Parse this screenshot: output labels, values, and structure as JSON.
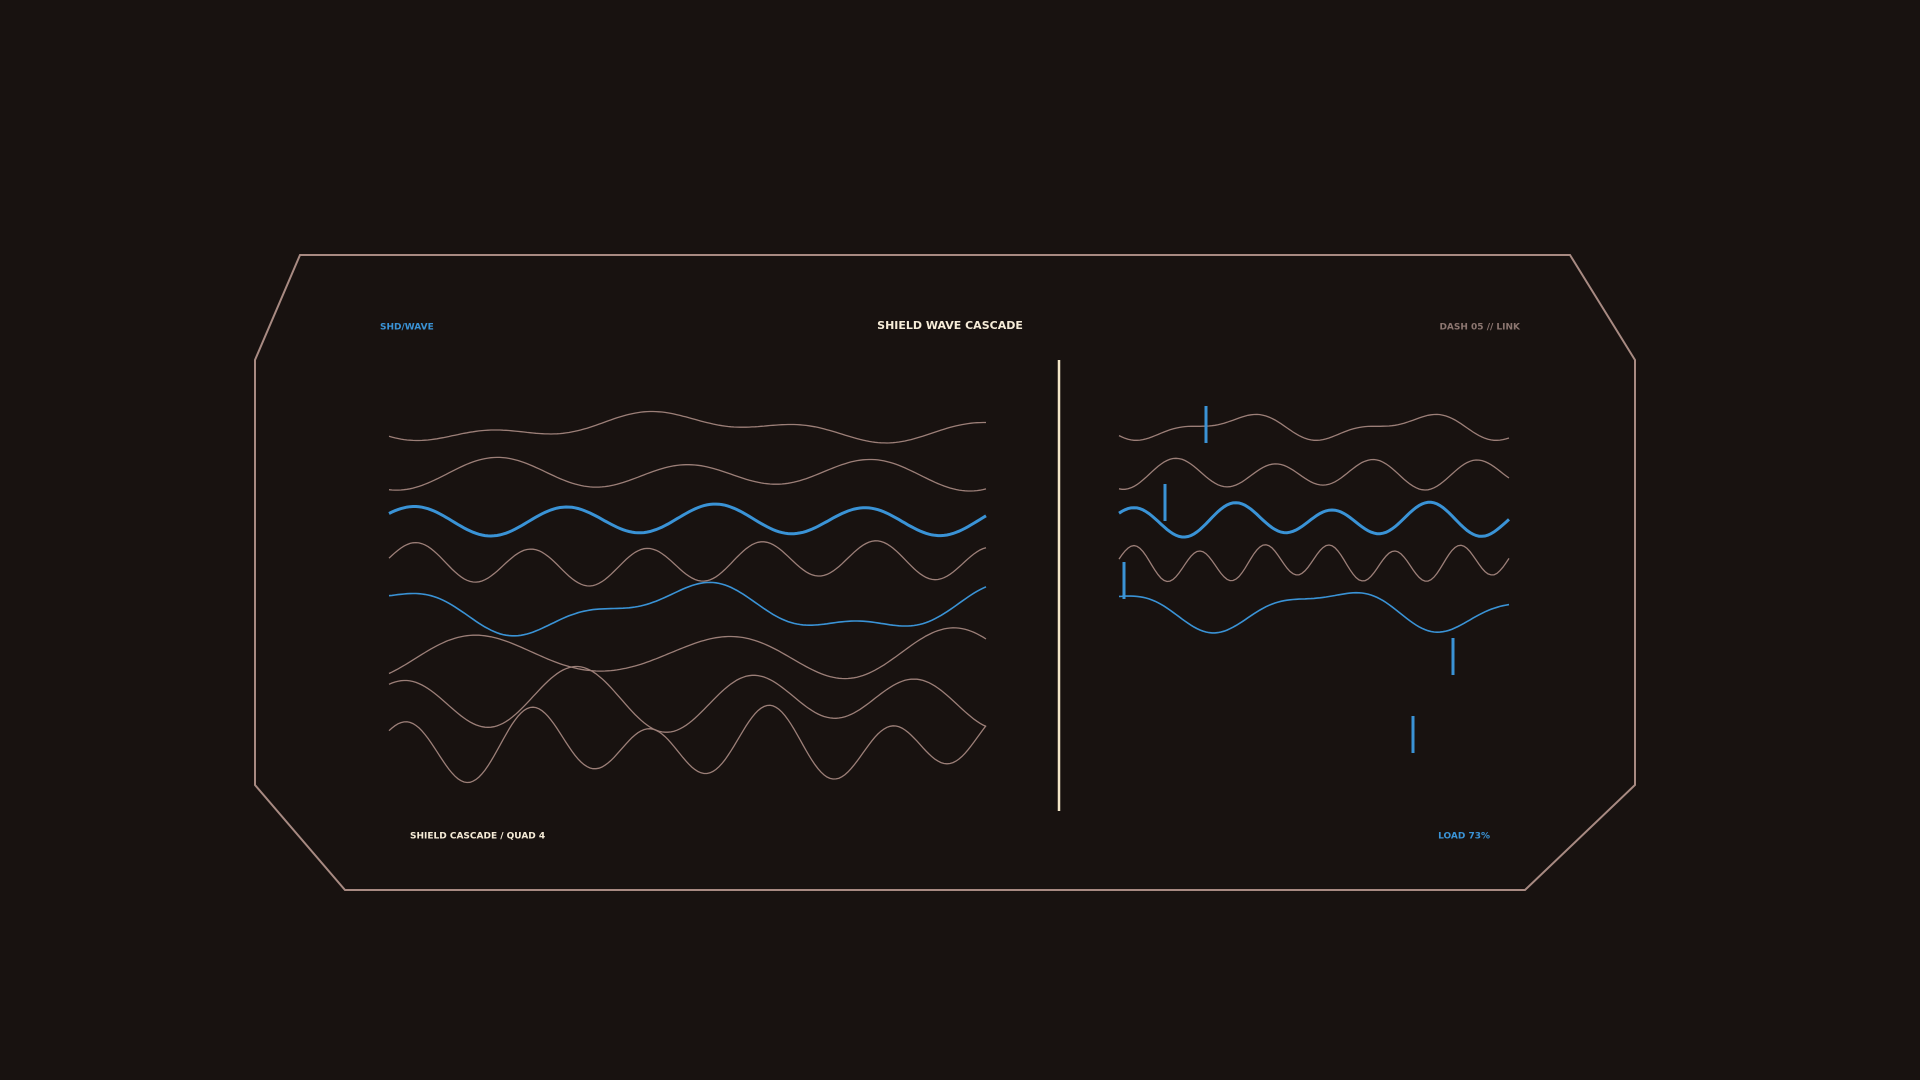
{
  "header": {
    "tag": "SHD/WAVE",
    "title": "SHIELD WAVE CASCADE",
    "link": "DASH 05 // LINK"
  },
  "footer": {
    "caption": "SHIELD CASCADE / QUAD 4",
    "status": "LOAD 73%"
  }
}
